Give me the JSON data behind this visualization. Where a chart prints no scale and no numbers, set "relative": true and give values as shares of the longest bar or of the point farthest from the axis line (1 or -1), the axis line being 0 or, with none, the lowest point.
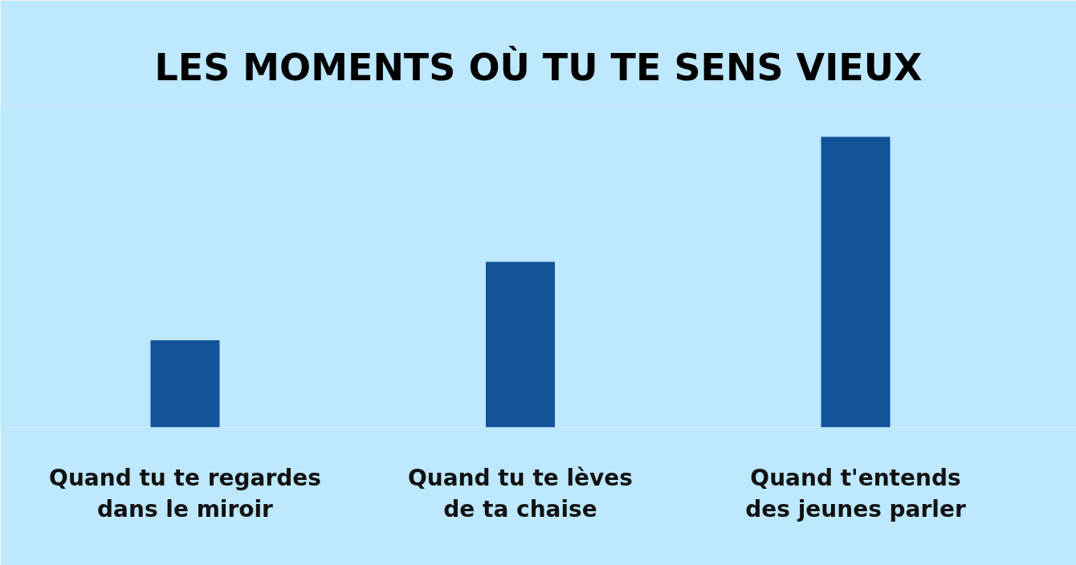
{
  "chart_data": {
    "type": "bar",
    "title": "LES MOMENTS OÙ TU TE SENS VIEUX",
    "categories": [
      "Quand tu te regardes\ndans le miroir",
      "Quand tu te lèves\nde ta chaise",
      "Quand t'entends\ndes jeunes parler"
    ],
    "values": [
      0.3,
      0.57,
      1
    ],
    "color": "#13539a",
    "relative": true
  }
}
